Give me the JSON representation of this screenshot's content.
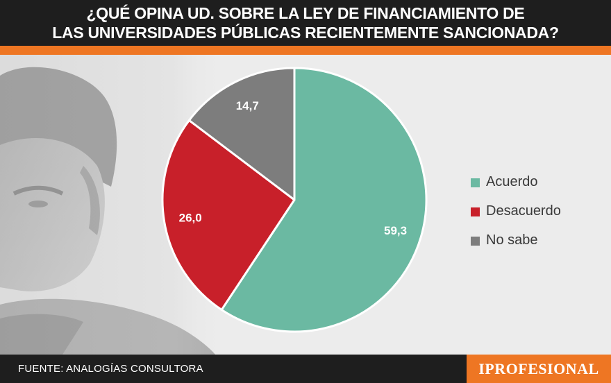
{
  "title": {
    "line1": "¿QUÉ OPINA UD. SOBRE LA LEY DE FINANCIAMIENTO DE",
    "line2": "LAS UNIVERSIDADES PÚBLICAS RECIENTEMENTE SANCIONADA?"
  },
  "chart_data": {
    "type": "pie",
    "categories": [
      "Acuerdo",
      "Desacuerdo",
      "No sabe"
    ],
    "values": [
      59.3,
      26.0,
      14.7
    ],
    "value_labels": [
      "59,3",
      "26,0",
      "14,7"
    ],
    "colors": [
      "#6bb9a2",
      "#c8202a",
      "#7d7d7d"
    ],
    "start_angle": 0,
    "direction": "clockwise",
    "legend": "right"
  },
  "legend": {
    "items": [
      {
        "label": "Acuerdo",
        "color": "#6bb9a2"
      },
      {
        "label": "Desacuerdo",
        "color": "#c8202a"
      },
      {
        "label": "No sabe",
        "color": "#7d7d7d"
      }
    ]
  },
  "footer": {
    "source": "FUENTE: ANALOGÍAS CONSULTORA",
    "brand": "IPROFESIONAL"
  },
  "colors": {
    "header_bg": "#1e1e1e",
    "accent_orange": "#ee7623",
    "background": "#ececec"
  }
}
